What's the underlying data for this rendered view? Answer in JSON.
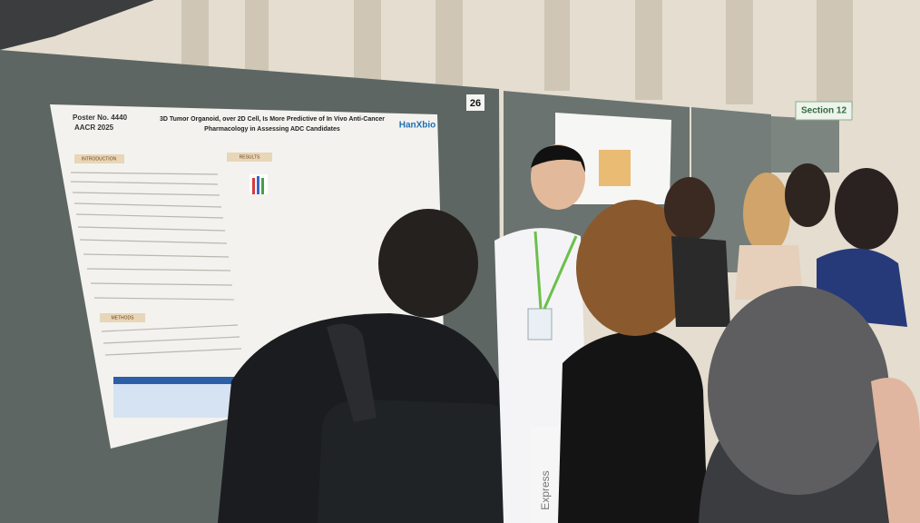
{
  "poster": {
    "number": "Poster No. 4440",
    "meeting": "AACR 2025",
    "title_line1": "3D Tumor Organoid, over 2D Cell, Is More Predictive of In Vivo Anti-Cancer",
    "title_line2": "Pharmacology in Assessing ADC Candidates",
    "logo": "HanXbio",
    "sections": [
      "INTRODUCTION",
      "RESULTS",
      "METHODS"
    ]
  },
  "board_number": "26",
  "section_sign": "Section 12",
  "box_label": "Express"
}
